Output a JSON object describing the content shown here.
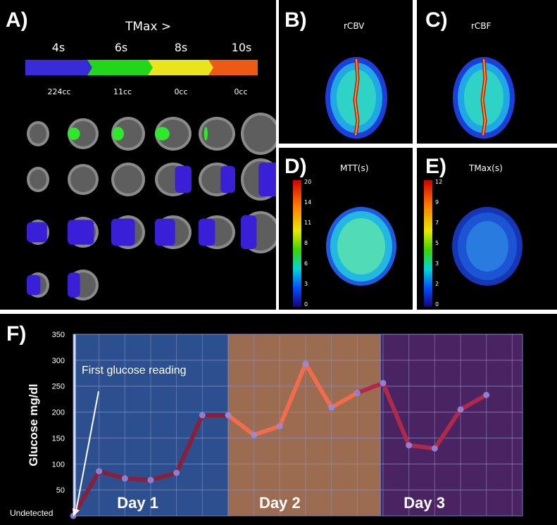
{
  "panels": {
    "a": {
      "label": "A)",
      "title": "TMax >",
      "thresholds": [
        "4s",
        "6s",
        "8s",
        "10s"
      ],
      "volumes": [
        "224cc",
        "11cc",
        "0cc",
        "0cc"
      ],
      "band_colors": [
        "#3a2bd9",
        "#22d61a",
        "#e9e51c",
        "#ec5a16"
      ]
    },
    "b": {
      "label": "B)",
      "title": "rCBV"
    },
    "c": {
      "label": "C)",
      "title": "rCBF"
    },
    "d": {
      "label": "D)",
      "title": "MTT(s)",
      "scale": [
        "20",
        "14",
        "11",
        "8",
        "6",
        "3",
        "0"
      ]
    },
    "e": {
      "label": "E)",
      "title": "TMax(s)",
      "scale": [
        "12",
        "9",
        "7",
        "5",
        "3",
        "2",
        "0"
      ]
    },
    "f": {
      "label": "F)"
    }
  },
  "chart_data": {
    "type": "line",
    "ylabel": "Glucose mg/dl",
    "ylim": [
      0,
      350
    ],
    "yticks": [
      "350",
      "300",
      "250",
      "200",
      "150",
      "100",
      "50"
    ],
    "y_min_label": "Undetected",
    "annotation": "First glucose reading",
    "days": [
      {
        "label": "Day 1",
        "color": "#2b4f8f"
      },
      {
        "label": "Day 2",
        "color": "#9c6c50"
      },
      {
        "label": "Day 3",
        "color": "#4a2362"
      }
    ],
    "points": [
      {
        "x": 0.0,
        "y": 0,
        "day": 1
      },
      {
        "x": 0.5,
        "y": 86,
        "day": 1
      },
      {
        "x": 1.0,
        "y": 72,
        "day": 1
      },
      {
        "x": 1.5,
        "y": 69,
        "day": 1
      },
      {
        "x": 2.0,
        "y": 83,
        "day": 1
      },
      {
        "x": 2.5,
        "y": 194,
        "day": 1
      },
      {
        "x": 3.0,
        "y": 194,
        "day": 1
      },
      {
        "x": 3.5,
        "y": 156,
        "day": 2
      },
      {
        "x": 4.0,
        "y": 173,
        "day": 2
      },
      {
        "x": 4.5,
        "y": 293,
        "day": 2
      },
      {
        "x": 5.0,
        "y": 209,
        "day": 2
      },
      {
        "x": 5.5,
        "y": 237,
        "day": 2
      },
      {
        "x": 6.0,
        "y": 256,
        "day": 3
      },
      {
        "x": 6.5,
        "y": 136,
        "day": 3
      },
      {
        "x": 7.0,
        "y": 130,
        "day": 3
      },
      {
        "x": 7.5,
        "y": 205,
        "day": 3
      },
      {
        "x": 8.0,
        "y": 233,
        "day": 3
      }
    ],
    "segment_colors": [
      "#8b1f3a",
      "#f26b4f",
      "#b0294a"
    ]
  }
}
